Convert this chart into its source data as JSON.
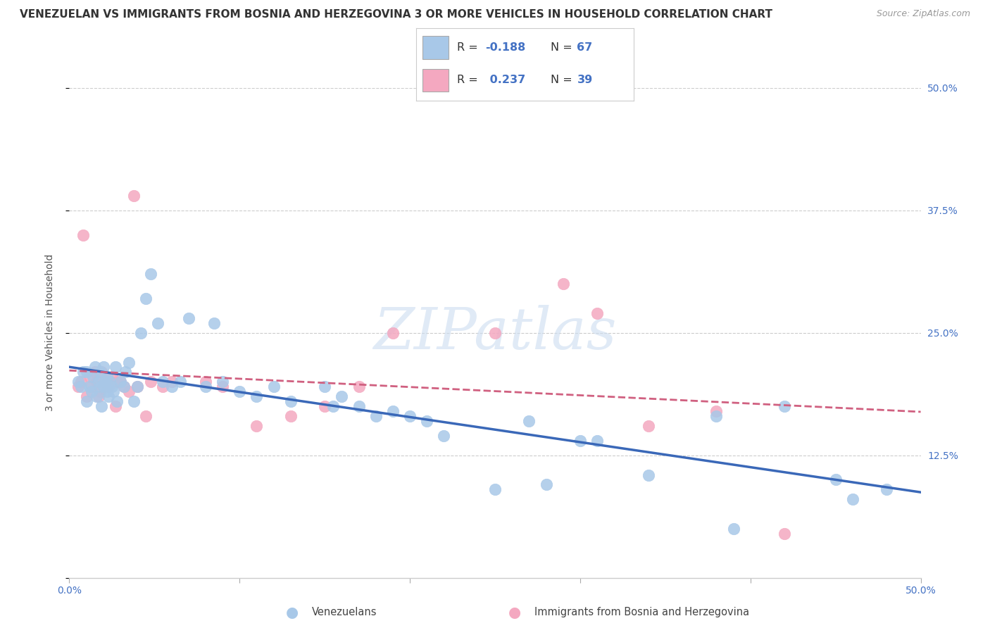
{
  "title": "VENEZUELAN VS IMMIGRANTS FROM BOSNIA AND HERZEGOVINA 3 OR MORE VEHICLES IN HOUSEHOLD CORRELATION CHART",
  "source": "Source: ZipAtlas.com",
  "ylabel": "3 or more Vehicles in Household",
  "x_min": 0.0,
  "x_max": 0.5,
  "y_min": 0.0,
  "y_max": 0.5,
  "y_ticks_right": [
    0.125,
    0.25,
    0.375,
    0.5
  ],
  "y_tick_labels_right": [
    "12.5%",
    "25.0%",
    "37.5%",
    "50.0%"
  ],
  "blue_color": "#a8c8e8",
  "pink_color": "#f4a8c0",
  "blue_line_color": "#3a68b8",
  "pink_line_color": "#d06080",
  "watermark_text": "ZIPatlas",
  "watermark_color": "#ccddf0",
  "blue_R": -0.188,
  "blue_N": 67,
  "pink_R": 0.237,
  "pink_N": 39,
  "blue_scatter_x": [
    0.005,
    0.007,
    0.008,
    0.01,
    0.01,
    0.012,
    0.013,
    0.014,
    0.015,
    0.016,
    0.017,
    0.018,
    0.018,
    0.019,
    0.02,
    0.02,
    0.021,
    0.022,
    0.022,
    0.023,
    0.024,
    0.025,
    0.026,
    0.027,
    0.028,
    0.03,
    0.032,
    0.033,
    0.035,
    0.038,
    0.04,
    0.042,
    0.045,
    0.048,
    0.052,
    0.055,
    0.06,
    0.065,
    0.07,
    0.08,
    0.085,
    0.09,
    0.1,
    0.11,
    0.12,
    0.13,
    0.15,
    0.155,
    0.16,
    0.17,
    0.18,
    0.19,
    0.2,
    0.21,
    0.22,
    0.25,
    0.27,
    0.28,
    0.3,
    0.31,
    0.34,
    0.38,
    0.39,
    0.42,
    0.45,
    0.46,
    0.48
  ],
  "blue_scatter_y": [
    0.2,
    0.195,
    0.21,
    0.18,
    0.21,
    0.195,
    0.19,
    0.205,
    0.215,
    0.185,
    0.2,
    0.195,
    0.21,
    0.175,
    0.195,
    0.215,
    0.2,
    0.19,
    0.205,
    0.185,
    0.2,
    0.195,
    0.19,
    0.215,
    0.18,
    0.2,
    0.195,
    0.21,
    0.22,
    0.18,
    0.195,
    0.25,
    0.285,
    0.31,
    0.26,
    0.2,
    0.195,
    0.2,
    0.265,
    0.195,
    0.26,
    0.2,
    0.19,
    0.185,
    0.195,
    0.18,
    0.195,
    0.175,
    0.185,
    0.175,
    0.165,
    0.17,
    0.165,
    0.16,
    0.145,
    0.09,
    0.16,
    0.095,
    0.14,
    0.14,
    0.105,
    0.165,
    0.05,
    0.175,
    0.1,
    0.08,
    0.09
  ],
  "pink_scatter_x": [
    0.005,
    0.007,
    0.008,
    0.01,
    0.012,
    0.013,
    0.015,
    0.016,
    0.017,
    0.018,
    0.019,
    0.02,
    0.022,
    0.023,
    0.025,
    0.027,
    0.028,
    0.03,
    0.032,
    0.035,
    0.038,
    0.04,
    0.045,
    0.048,
    0.055,
    0.06,
    0.08,
    0.09,
    0.11,
    0.13,
    0.15,
    0.17,
    0.19,
    0.25,
    0.29,
    0.31,
    0.34,
    0.38,
    0.42
  ],
  "pink_scatter_y": [
    0.195,
    0.2,
    0.35,
    0.185,
    0.205,
    0.195,
    0.21,
    0.2,
    0.185,
    0.19,
    0.21,
    0.195,
    0.2,
    0.195,
    0.205,
    0.175,
    0.2,
    0.2,
    0.195,
    0.19,
    0.39,
    0.195,
    0.165,
    0.2,
    0.195,
    0.2,
    0.2,
    0.195,
    0.155,
    0.165,
    0.175,
    0.195,
    0.25,
    0.25,
    0.3,
    0.27,
    0.155,
    0.17,
    0.045
  ],
  "background_color": "#ffffff",
  "grid_color": "#cccccc",
  "title_fontsize": 11,
  "axis_label_fontsize": 10,
  "tick_fontsize": 10,
  "legend_label1": "Venezuelans",
  "legend_label2": "Immigrants from Bosnia and Herzegovina"
}
